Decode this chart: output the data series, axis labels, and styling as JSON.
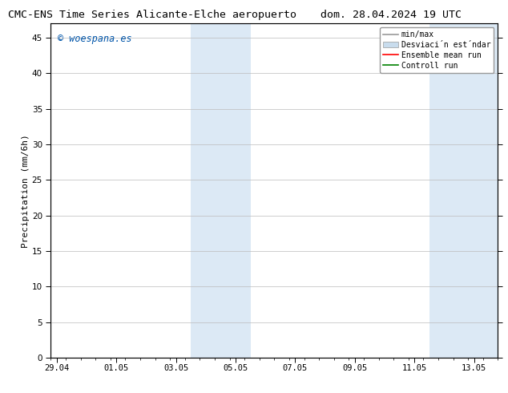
{
  "title_left": "CMC-ENS Time Series Alicante-Elche aeropuerto",
  "title_right": "dom. 28.04.2024 19 UTC",
  "ylabel": "Precipitation (mm/6h)",
  "watermark": "© woespana.es",
  "watermark_color": "#0055aa",
  "ylim": [
    0,
    47
  ],
  "yticks": [
    0,
    5,
    10,
    15,
    20,
    25,
    30,
    35,
    40,
    45
  ],
  "xtick_labels": [
    "29.04",
    "01.05",
    "03.05",
    "05.05",
    "07.05",
    "09.05",
    "11.05",
    "13.05"
  ],
  "xtick_positions": [
    0,
    2,
    4,
    6,
    8,
    10,
    12,
    14
  ],
  "xlim": [
    -0.2,
    14.8
  ],
  "shaded_bands": [
    {
      "xstart": 4.5,
      "xend": 6.5
    },
    {
      "xstart": 12.5,
      "xend": 14.8
    }
  ],
  "shaded_color": "#dce9f5",
  "legend_minmax_color": "#999999",
  "legend_std_color": "#c8dced",
  "legend_ens_color": "#ff0000",
  "legend_ctrl_color": "#008000",
  "background_color": "#ffffff",
  "plot_bg_color": "#ffffff",
  "grid_color": "#bbbbbb",
  "spine_color": "#000000",
  "title_fontsize": 9.5,
  "tick_fontsize": 7.5,
  "ylabel_fontsize": 8,
  "legend_fontsize": 7,
  "watermark_fontsize": 8.5
}
